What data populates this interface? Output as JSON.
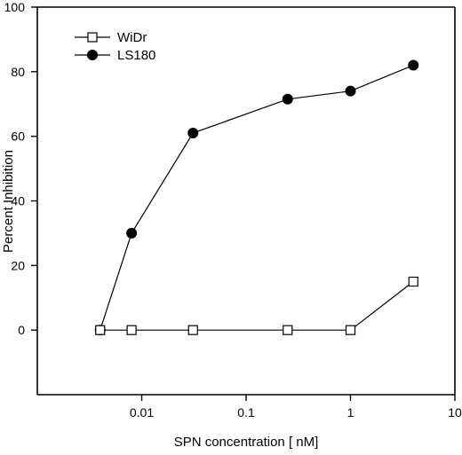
{
  "chart_data": {
    "type": "line",
    "title": "",
    "xlabel": "SPN concentration [ nM]",
    "ylabel": "Percent Inhibition",
    "x_scale": "log",
    "xlim": [
      0.001,
      10
    ],
    "ylim": [
      -20,
      100
    ],
    "x_ticks": [
      0.01,
      0.1,
      1,
      10
    ],
    "x_tick_labels": [
      "0.01",
      "0.1",
      "1",
      "10"
    ],
    "y_ticks": [
      0,
      20,
      40,
      60,
      80,
      100
    ],
    "y_tick_labels": [
      "0",
      "20",
      "40",
      "60",
      "80",
      "100"
    ],
    "grid": false,
    "legend_position": "top-left",
    "series": [
      {
        "name": "WiDr",
        "marker": "open-square",
        "color": "#000000",
        "x": [
          0.004,
          0.008,
          0.031,
          0.25,
          1,
          4
        ],
        "y": [
          0,
          0,
          0,
          0,
          0,
          15
        ]
      },
      {
        "name": "LS180",
        "marker": "filled-circle",
        "color": "#000000",
        "x": [
          0.004,
          0.008,
          0.031,
          0.25,
          1,
          4
        ],
        "y": [
          0,
          30,
          61,
          71.5,
          74,
          82
        ]
      }
    ]
  }
}
